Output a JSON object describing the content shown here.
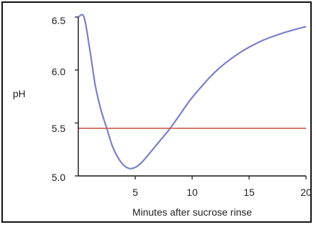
{
  "chart_data": {
    "type": "line",
    "title": "",
    "xlabel": "Minutes after sucrose rinse",
    "ylabel": "pH",
    "xlim": [
      0,
      20
    ],
    "ylim": [
      5.0,
      6.5
    ],
    "xticks": [
      "5",
      "10",
      "15",
      "20"
    ],
    "yticks": [
      "5.0",
      "5.5",
      "6.0",
      "6.5"
    ],
    "grid": false,
    "legend": "none",
    "threshold": 5.45,
    "series": [
      {
        "x": [
          0.0,
          0.5,
          1.0,
          1.5,
          2.0,
          2.5,
          3.0,
          3.5,
          4.0,
          4.5,
          5.0,
          5.5,
          6.0,
          7.0,
          8.0,
          9.0,
          10.0,
          12.0,
          14.0,
          16.0,
          18.0,
          20.0
        ],
        "values": [
          6.5,
          6.5,
          6.2,
          5.85,
          5.62,
          5.45,
          5.28,
          5.17,
          5.1,
          5.07,
          5.08,
          5.12,
          5.18,
          5.31,
          5.44,
          5.59,
          5.74,
          5.98,
          6.15,
          6.27,
          6.35,
          6.41
        ]
      }
    ],
    "colors": {
      "curve": "#7b7fc7",
      "fill": "#ff0000",
      "threshold": "#c85a4f",
      "axis": "#111111"
    }
  }
}
